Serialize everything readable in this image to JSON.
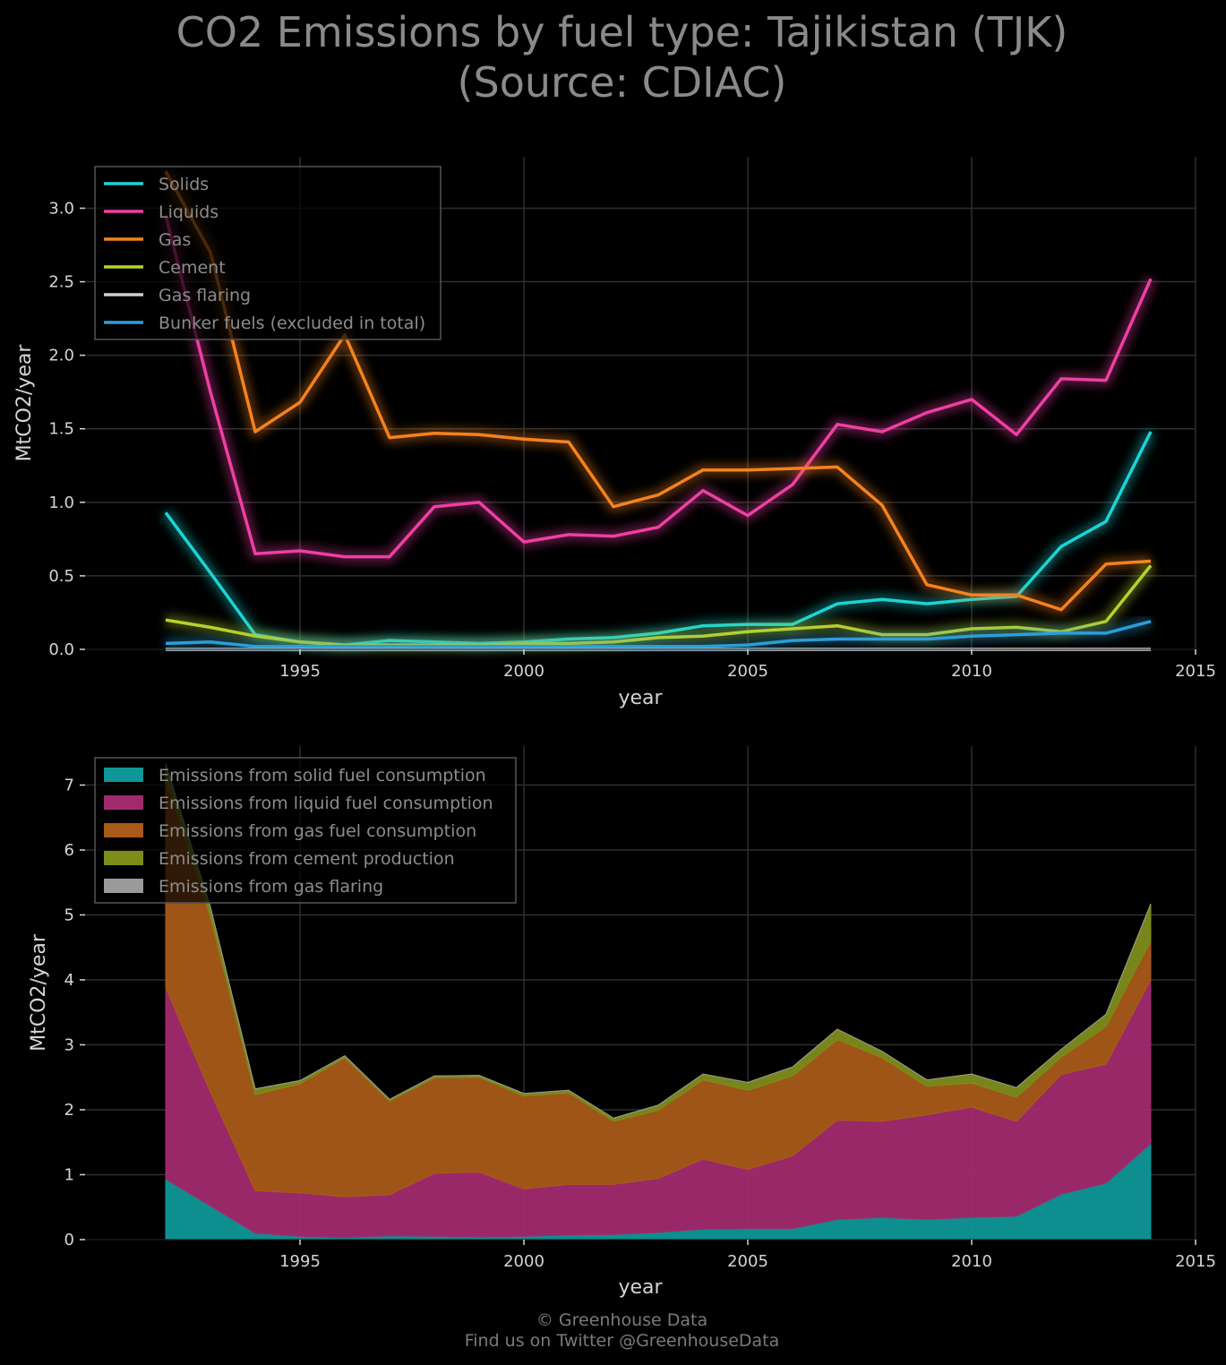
{
  "title_line1": "CO2 Emissions by fuel type: Tajikistan (TJK)",
  "title_line2": "(Source: CDIAC)",
  "footer_line1": "© Greenhouse Data",
  "footer_line2": "Find us on Twitter @GreenhouseData",
  "chart_data": [
    {
      "type": "line",
      "xlabel": "year",
      "ylabel": "MtCO2/year",
      "xlim": [
        1990.2,
        2015
      ],
      "ylim": [
        0,
        3.35
      ],
      "xticks": [
        1995,
        2000,
        2005,
        2010,
        2015
      ],
      "yticks": [
        0.0,
        0.5,
        1.0,
        1.5,
        2.0,
        2.5,
        3.0
      ],
      "ytick_labels": [
        "0.0",
        "0.5",
        "1.0",
        "1.5",
        "2.0",
        "2.5",
        "3.0"
      ],
      "grid": true,
      "legend_position": "top-left",
      "x": [
        1992,
        1993,
        1994,
        1995,
        1996,
        1997,
        1998,
        1999,
        2000,
        2001,
        2002,
        2003,
        2004,
        2005,
        2006,
        2007,
        2008,
        2009,
        2010,
        2011,
        2012,
        2013,
        2014
      ],
      "series": [
        {
          "name": "Solids",
          "color": "#1ad5d5",
          "values": [
            0.93,
            0.52,
            0.1,
            0.05,
            0.03,
            0.06,
            0.05,
            0.04,
            0.05,
            0.07,
            0.08,
            0.11,
            0.16,
            0.17,
            0.17,
            0.31,
            0.34,
            0.31,
            0.34,
            0.36,
            0.7,
            0.87,
            1.48
          ]
        },
        {
          "name": "Liquids",
          "color": "#ef3fa3",
          "values": [
            2.95,
            1.75,
            0.65,
            0.67,
            0.63,
            0.63,
            0.97,
            1.0,
            0.73,
            0.78,
            0.77,
            0.83,
            1.08,
            0.91,
            1.12,
            1.53,
            1.48,
            1.61,
            1.7,
            1.46,
            1.84,
            1.83,
            2.52
          ]
        },
        {
          "name": "Gas",
          "color": "#f5821e",
          "values": [
            3.25,
            2.7,
            1.48,
            1.68,
            2.14,
            1.44,
            1.47,
            1.46,
            1.43,
            1.41,
            0.97,
            1.05,
            1.22,
            1.22,
            1.23,
            1.24,
            0.98,
            0.44,
            0.37,
            0.37,
            0.27,
            0.58,
            0.6
          ]
        },
        {
          "name": "Cement",
          "color": "#b9d22b",
          "values": [
            0.2,
            0.15,
            0.09,
            0.05,
            0.03,
            0.03,
            0.03,
            0.03,
            0.04,
            0.04,
            0.05,
            0.08,
            0.09,
            0.12,
            0.14,
            0.16,
            0.1,
            0.1,
            0.14,
            0.15,
            0.12,
            0.19,
            0.57
          ]
        },
        {
          "name": "Gas flaring",
          "color": "#d0d0d0",
          "values": [
            0,
            0,
            0,
            0,
            0,
            0,
            0,
            0,
            0,
            0,
            0,
            0,
            0,
            0,
            0,
            0,
            0,
            0,
            0,
            0,
            0,
            0,
            0
          ]
        },
        {
          "name": "Bunker fuels (excluded in total)",
          "color": "#2a9fd8",
          "values": [
            0.04,
            0.05,
            0.02,
            0.02,
            0.02,
            0.02,
            0.02,
            0.02,
            0.02,
            0.02,
            0.02,
            0.02,
            0.02,
            0.03,
            0.06,
            0.07,
            0.07,
            0.07,
            0.09,
            0.1,
            0.11,
            0.11,
            0.19
          ]
        }
      ]
    },
    {
      "type": "area",
      "stacked": true,
      "xlabel": "year",
      "ylabel": "MtCO2/year",
      "xlim": [
        1990.2,
        2015
      ],
      "ylim": [
        0,
        7.6
      ],
      "xticks": [
        1995,
        2000,
        2005,
        2010,
        2015
      ],
      "yticks": [
        0,
        1,
        2,
        3,
        4,
        5,
        6,
        7
      ],
      "ytick_labels": [
        "0",
        "1",
        "2",
        "3",
        "4",
        "5",
        "6",
        "7"
      ],
      "grid": true,
      "legend_position": "top-left",
      "x": [
        1992,
        1993,
        1994,
        1995,
        1996,
        1997,
        1998,
        1999,
        2000,
        2001,
        2002,
        2003,
        2004,
        2005,
        2006,
        2007,
        2008,
        2009,
        2010,
        2011,
        2012,
        2013,
        2014
      ],
      "series": [
        {
          "name": "Emissions from solid fuel consumption",
          "color": "#0f9696",
          "values": [
            0.93,
            0.52,
            0.1,
            0.05,
            0.03,
            0.06,
            0.05,
            0.04,
            0.05,
            0.07,
            0.08,
            0.11,
            0.16,
            0.17,
            0.17,
            0.31,
            0.34,
            0.31,
            0.34,
            0.36,
            0.7,
            0.87,
            1.48
          ]
        },
        {
          "name": "Emissions from liquid fuel consumption",
          "color": "#a12a6f",
          "values": [
            2.95,
            1.75,
            0.65,
            0.67,
            0.63,
            0.63,
            0.97,
            1.0,
            0.73,
            0.78,
            0.77,
            0.83,
            1.08,
            0.91,
            1.12,
            1.53,
            1.48,
            1.61,
            1.7,
            1.46,
            1.84,
            1.83,
            2.52
          ]
        },
        {
          "name": "Emissions from gas fuel consumption",
          "color": "#a85a18",
          "values": [
            3.25,
            2.7,
            1.48,
            1.68,
            2.14,
            1.44,
            1.47,
            1.46,
            1.43,
            1.41,
            0.97,
            1.05,
            1.22,
            1.22,
            1.23,
            1.24,
            0.98,
            0.44,
            0.37,
            0.37,
            0.27,
            0.58,
            0.6
          ]
        },
        {
          "name": "Emissions from cement production",
          "color": "#7d8c1b",
          "values": [
            0.2,
            0.15,
            0.09,
            0.05,
            0.03,
            0.03,
            0.03,
            0.03,
            0.04,
            0.04,
            0.05,
            0.08,
            0.09,
            0.12,
            0.14,
            0.16,
            0.1,
            0.1,
            0.14,
            0.15,
            0.12,
            0.19,
            0.57
          ]
        },
        {
          "name": "Emissions from gas flaring",
          "color": "#9a9a9a",
          "values": [
            0,
            0,
            0,
            0,
            0,
            0,
            0,
            0,
            0,
            0,
            0,
            0,
            0,
            0,
            0,
            0,
            0,
            0,
            0,
            0,
            0,
            0,
            0
          ]
        }
      ]
    }
  ]
}
